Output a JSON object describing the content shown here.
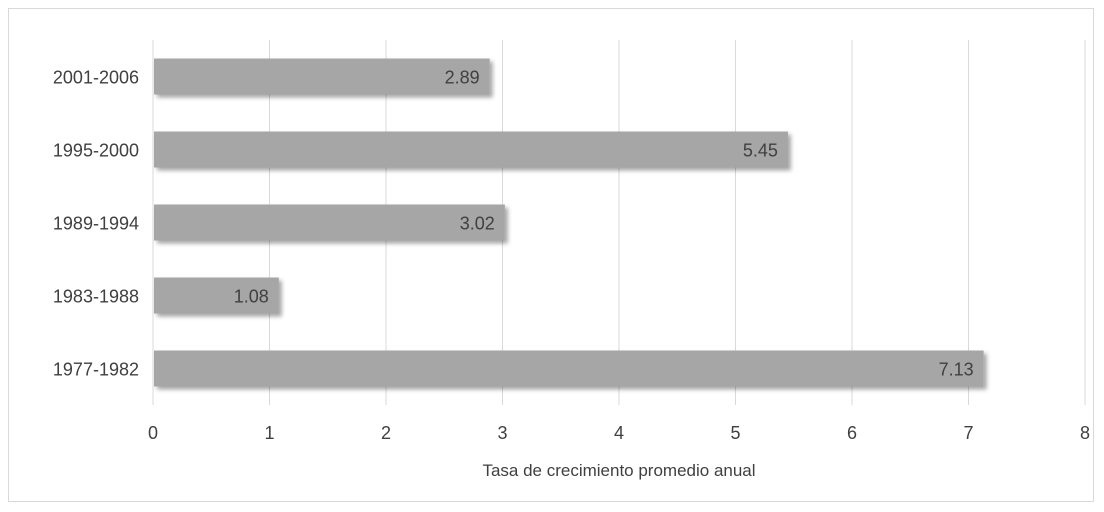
{
  "chart_data": {
    "type": "bar",
    "orientation": "horizontal",
    "categories": [
      "2001-2006",
      "1995-2000",
      "1989-1994",
      "1983-1988",
      "1977-1982"
    ],
    "values": [
      2.89,
      5.45,
      3.02,
      1.08,
      7.13
    ],
    "data_labels": [
      "2.89",
      "5.45",
      "3.02",
      "1.08",
      "7.13"
    ],
    "title": "",
    "xlabel": "Tasa de crecimiento promedio anual",
    "ylabel": "",
    "xlim": [
      0,
      8
    ],
    "x_ticks": [
      "0",
      "1",
      "2",
      "3",
      "4",
      "5",
      "6",
      "7",
      "8"
    ],
    "grid": true,
    "legend": "none",
    "bar_color": "#a6a6a6",
    "bar_shadow_color": "#8c8c8c",
    "grid_color": "#d9d9d9",
    "text_color": "#404040"
  }
}
